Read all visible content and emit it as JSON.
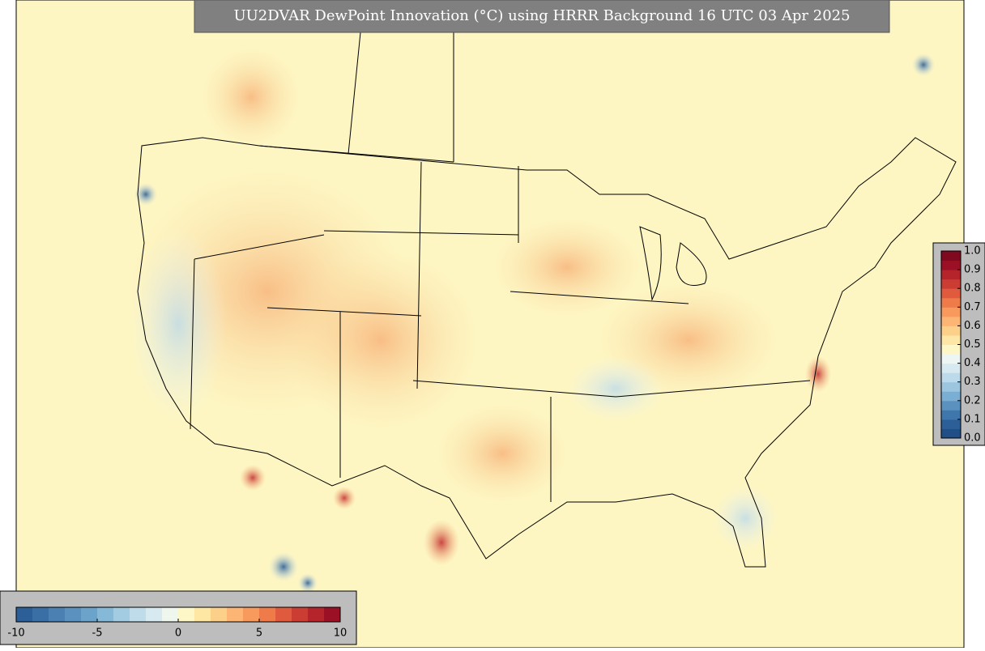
{
  "title": "UU2DVAR DewPoint Innovation (°C) using HRRR Background 16 UTC 03 Apr 2025",
  "bottom_colorbar": {
    "lim": [
      -10,
      10
    ],
    "ticks": [
      -10,
      -5,
      0,
      5,
      10
    ],
    "colors": [
      "#2c5f98",
      "#3a6fa5",
      "#4a80b2",
      "#5b91be",
      "#6ca3cb",
      "#86b8d8",
      "#a3cbe2",
      "#bfdceb",
      "#d8eaf1",
      "#eef6ee",
      "#fdf7c8",
      "#fee7a3",
      "#fdd08a",
      "#fcb574",
      "#f89a5e",
      "#ef7b4b",
      "#e05b3d",
      "#cb3d33",
      "#b5242b",
      "#9b1025"
    ]
  },
  "right_colorbar": {
    "lim": [
      0,
      1
    ],
    "ticks": [
      {
        "value": 0,
        "label": "0.0"
      },
      0.1,
      0.2,
      0.3,
      0.4,
      0.5,
      0.6,
      0.7,
      0.8,
      0.9,
      {
        "value": 1,
        "label": "1.0"
      }
    ],
    "colors": [
      "#1f4f86",
      "#2c5f98",
      "#3f76ab",
      "#5b91be",
      "#7aaed2",
      "#9cc6df",
      "#bcdaea",
      "#d8eaf1",
      "#eef6f4",
      "#fdf7c8",
      "#fde6a6",
      "#fdd08a",
      "#fcb574",
      "#f89a5e",
      "#ef7b4b",
      "#e05b3d",
      "#cb3d33",
      "#b5242b",
      "#9b1025",
      "#7f0a1f"
    ]
  }
}
